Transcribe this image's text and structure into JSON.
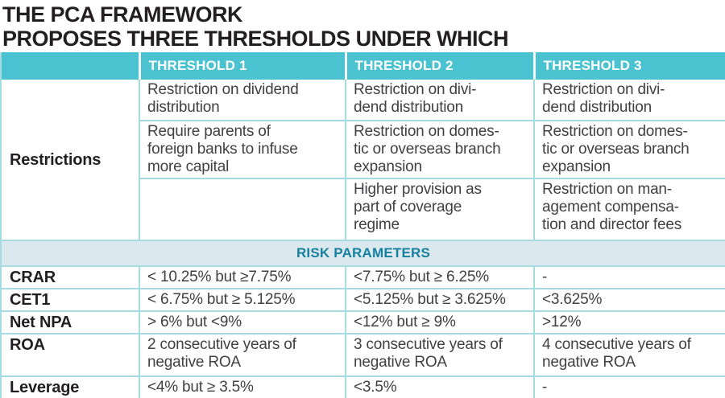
{
  "colors": {
    "header_teal": "#4bc2cf",
    "grid_border": "#a6dbe2",
    "bottom_border": "#7ccfd9",
    "band_background": "#dbe8ed",
    "band_text": "#16809f",
    "title_text": "#231f20",
    "body_text": "#414042"
  },
  "chart_data": {
    "type": "table",
    "title": "THE PCA FRAMEWORK PROPOSES THREE THRESHOLDS UNDER WHICH",
    "title_lines": {
      "line1": "THE PCA FRAMEWORK",
      "line2": "PROPOSES THREE THRESHOLDS UNDER WHICH"
    },
    "columns": {
      "corner": "",
      "t1": "THRESHOLD 1",
      "t2": "THRESHOLD 2",
      "t3": "THRESHOLD 3"
    },
    "restrictions": {
      "row_label": "Restrictions",
      "rows": [
        {
          "t1": "Restriction on dividend\ndistribution",
          "t2": "Restriction on divi-\ndend distribution",
          "t3": "Restriction on divi-\ndend distribution"
        },
        {
          "t1": "Require parents of\nforeign banks to infuse\nmore capital",
          "t2": "Restriction on domes-\ntic or overseas branch\nexpansion",
          "t3": "Restriction on domes-\ntic or overseas branch\nexpansion"
        },
        {
          "t1": "",
          "t2": "Higher provision as\npart of coverage\nregime",
          "t3": "Restriction on man-\nagement compensa-\ntion and director fees"
        }
      ]
    },
    "section_header": "RISK PARAMETERS",
    "risk_rows": [
      {
        "label": "CRAR",
        "t1": "< 10.25% but ≥7.75%",
        "t2": "<7.75% but ≥ 6.25%",
        "t3": "-"
      },
      {
        "label": "CET1",
        "t1": "< 6.75% but ≥ 5.125%",
        "t2": "<5.125% but ≥ 3.625%",
        "t3": "<3.625%"
      },
      {
        "label": "Net NPA",
        "t1": "> 6% but <9%",
        "t2": "<12% but ≥ 9%",
        "t3": ">12%"
      },
      {
        "label": "ROA",
        "t1": "2 consecutive years of\nnegative ROA",
        "t2": "3 consecutive years of\nnegative ROA",
        "t3": "4 consecutive years of\nnegative ROA"
      },
      {
        "label": "Leverage",
        "t1": "<4% but ≥ 3.5%",
        "t2": "<3.5%",
        "t3": "-"
      }
    ]
  }
}
